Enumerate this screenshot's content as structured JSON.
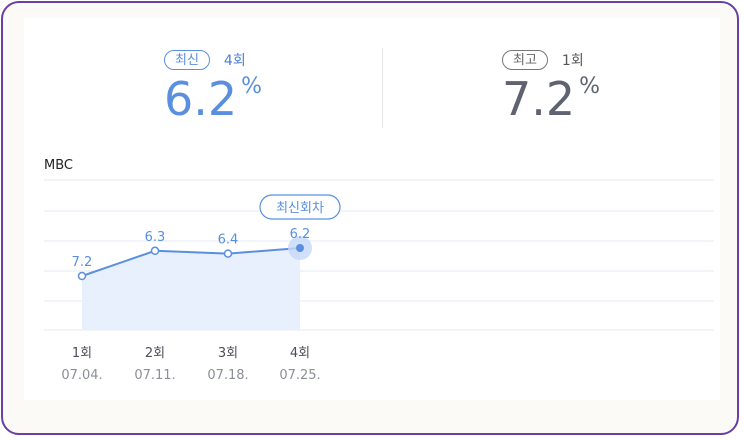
{
  "latest": {
    "badge": "최신",
    "episode": "4회",
    "value": "6.2",
    "unit": "%"
  },
  "best": {
    "badge": "최고",
    "episode": "1회",
    "value": "7.2",
    "unit": "%"
  },
  "channel": "MBC",
  "colors": {
    "line": "#5a8fe0",
    "fill": "#e8f0fd",
    "marker_highlight": "#c5d8f7",
    "border": "#6b3fa0"
  },
  "chart_data": {
    "type": "line",
    "categories": [
      "1회",
      "2회",
      "3회",
      "4회"
    ],
    "dates": [
      "07.04.",
      "07.11.",
      "07.18.",
      "07.25."
    ],
    "values": [
      7.2,
      6.3,
      6.4,
      6.2
    ],
    "value_labels": [
      "7.2",
      "6.3",
      "6.4",
      "6.2"
    ],
    "highlight_index": 3,
    "annotation": "최신회차",
    "grid": true
  }
}
